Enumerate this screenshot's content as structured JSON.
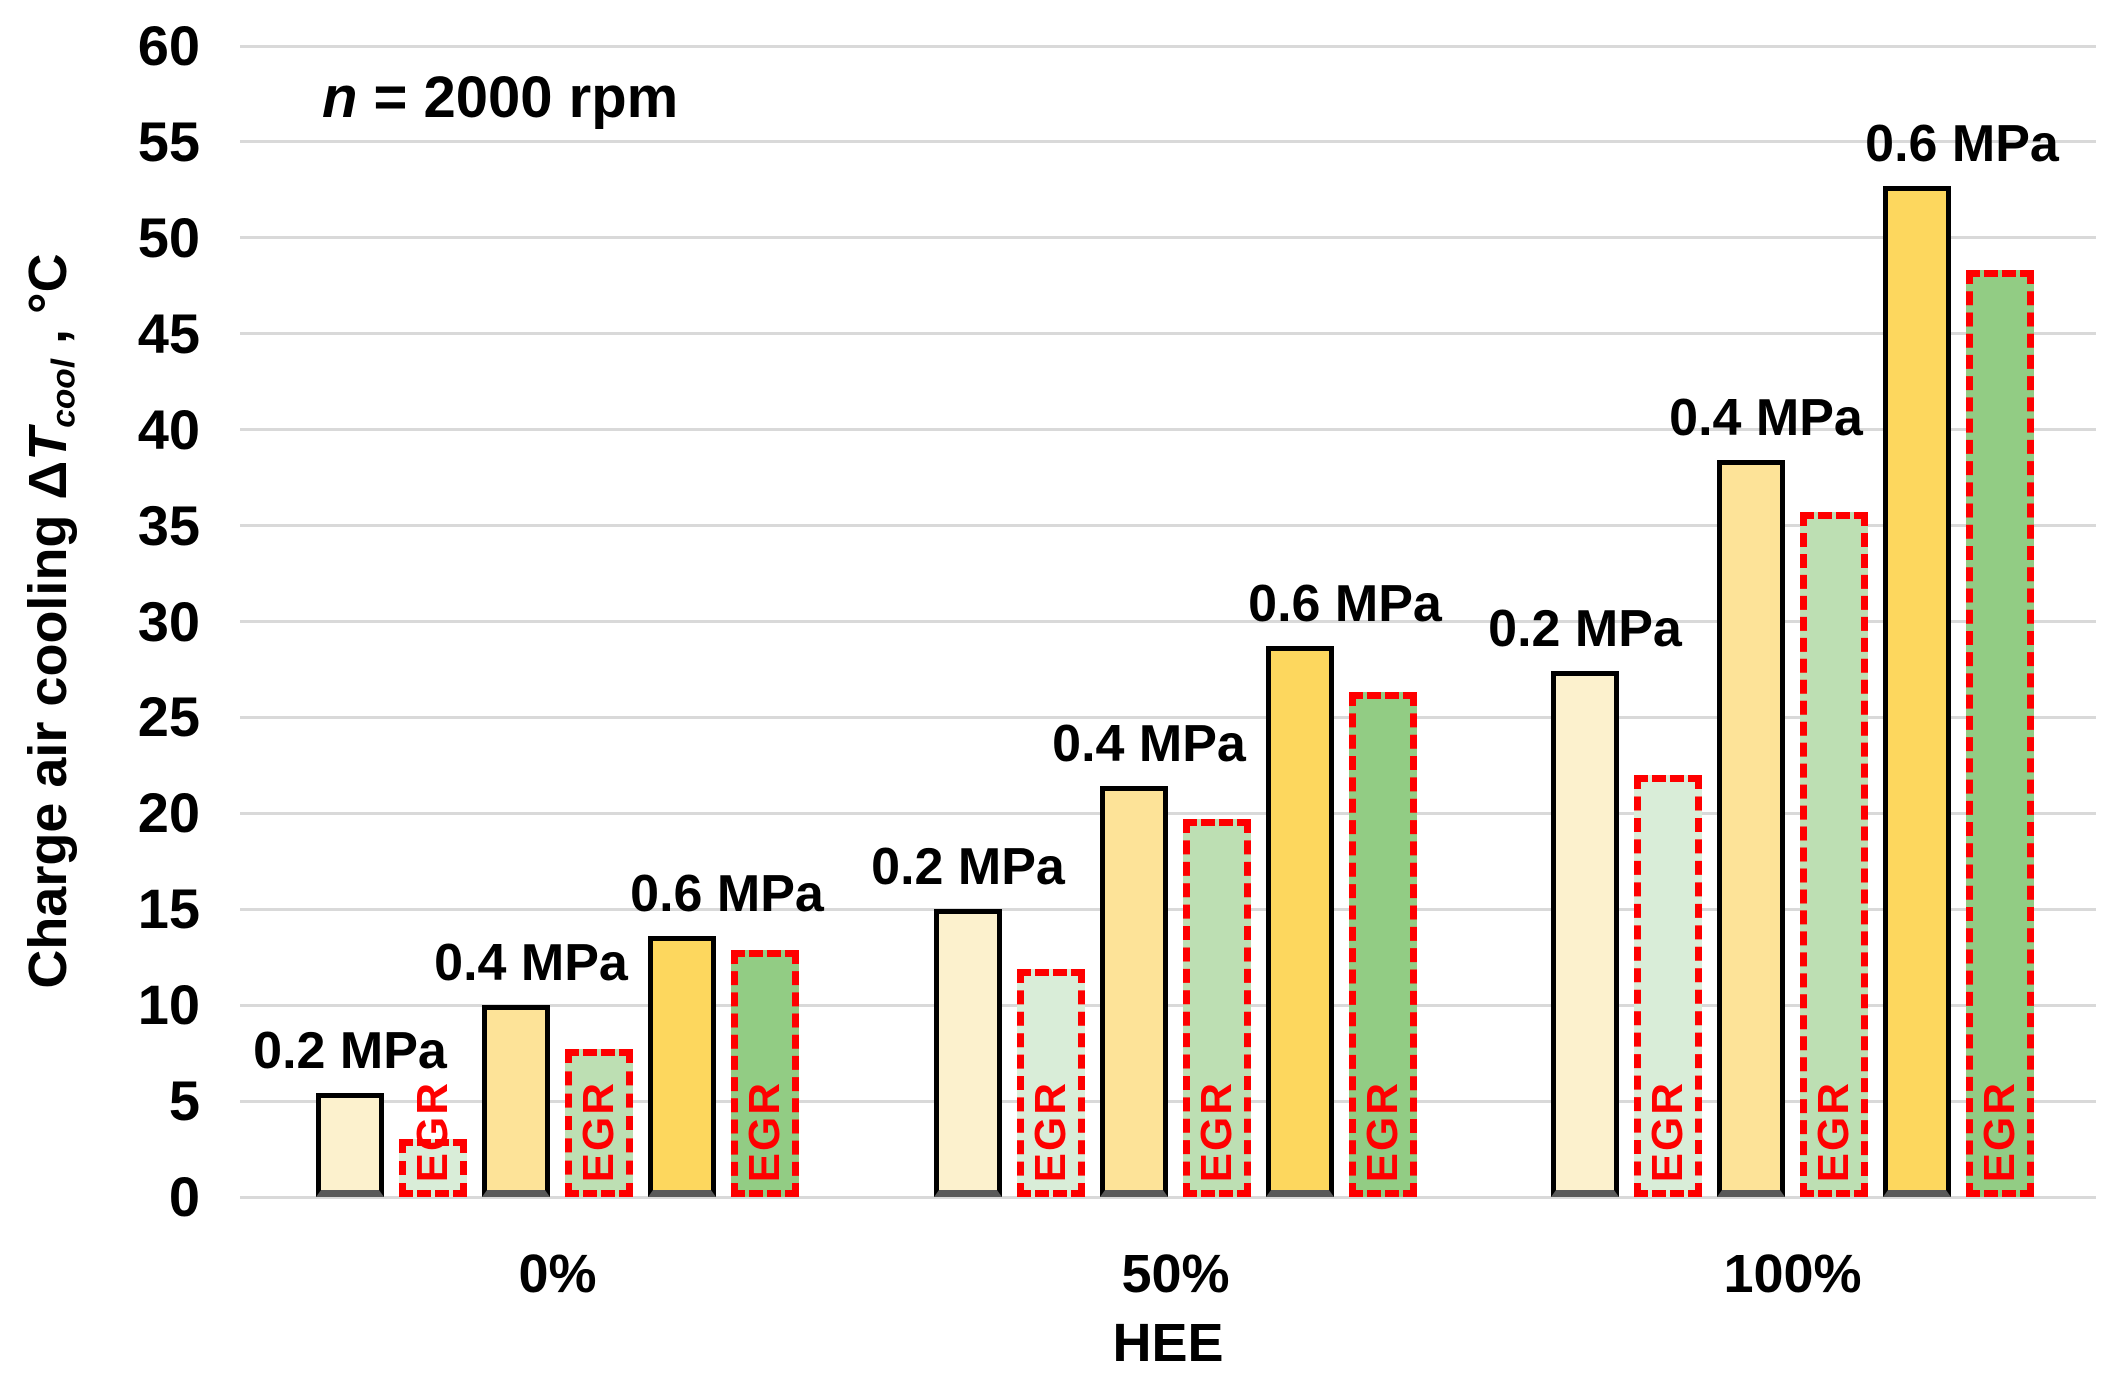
{
  "figure": {
    "annotation": {
      "n_symbol": "n",
      "rest": " = 2000 rpm"
    },
    "y_axis": {
      "title_prefix": "Charge air cooling Δ",
      "title_T": "T",
      "title_sub": "cool",
      "title_suffix": " , °C",
      "tick_labels": [
        "0",
        "5",
        "10",
        "15",
        "20",
        "25",
        "30",
        "35",
        "40",
        "45",
        "50",
        "55",
        "60"
      ]
    },
    "x_axis": {
      "title": "HEE",
      "categories": [
        "0%",
        "50%",
        "100%"
      ]
    },
    "egr_label": "EGR"
  },
  "colors": {
    "pressure_02": "#FCF1CD",
    "pressure_04": "#FDE398",
    "pressure_06": "#FDD75E",
    "egr_02": "#D9EDD8",
    "egr_04": "#BDDFB3",
    "egr_06": "#92CC84",
    "egr_outline": "#FE0000",
    "bar_outline": "#000000",
    "bar_base_edge": "#595959",
    "gridline": "#D9D9D9",
    "background": "#FFFFFF",
    "text": "#000000"
  },
  "chart_data": {
    "type": "bar",
    "annotation": "n = 2000 rpm",
    "xlabel": "HEE",
    "ylabel": "Charge air cooling ΔT_cool, °C",
    "ylim": [
      0,
      60
    ],
    "ytick_step": 5,
    "grid": true,
    "legend_position": "none",
    "categories": [
      "0%",
      "50%",
      "100%"
    ],
    "pressure_labels": [
      "0.2 MPa",
      "0.4 MPa",
      "0.6 MPa"
    ],
    "egr_inner_label": "EGR",
    "series": [
      {
        "name": "0.2 MPa",
        "egr": false,
        "color": "#FCF1CD",
        "values": [
          5.4,
          15.0,
          27.4
        ]
      },
      {
        "name": "0.2 MPa EGR",
        "egr": true,
        "color": "#D9EDD8",
        "values": [
          3.0,
          11.9,
          22.0
        ]
      },
      {
        "name": "0.4 MPa",
        "egr": false,
        "color": "#FDE398",
        "values": [
          10.0,
          21.4,
          38.4
        ]
      },
      {
        "name": "0.4 MPa EGR",
        "egr": true,
        "color": "#BDDFB3",
        "values": [
          7.7,
          19.7,
          35.7
        ]
      },
      {
        "name": "0.6 MPa",
        "egr": false,
        "color": "#FDD75E",
        "values": [
          13.6,
          28.7,
          52.7
        ]
      },
      {
        "name": "0.6 MPa EGR",
        "egr": true,
        "color": "#92CC84",
        "values": [
          12.9,
          26.3,
          48.3
        ]
      }
    ]
  }
}
